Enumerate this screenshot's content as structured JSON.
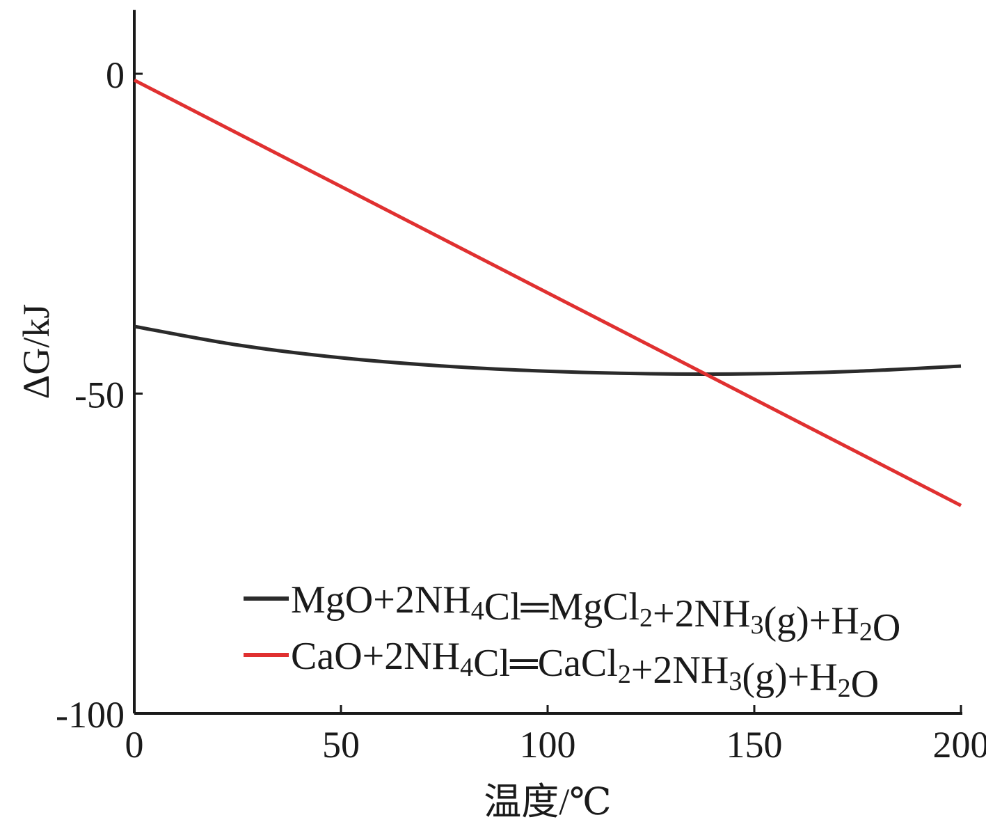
{
  "chart_data": {
    "type": "line",
    "xlabel": "温度/℃",
    "ylabel": "ΔG/kJ",
    "xlim": [
      0,
      200
    ],
    "ylim": [
      -100,
      10
    ],
    "xticks": [
      0,
      50,
      100,
      150,
      200
    ],
    "xtick_labels": [
      "0",
      "50",
      "100",
      "150",
      "200"
    ],
    "yticks": [
      0,
      -50,
      -100
    ],
    "ytick_labels": [
      "0",
      "-50",
      "-100"
    ],
    "grid": false,
    "legend_position": "bottom-right",
    "series": [
      {
        "name": "MgO+2NH4Cl═MgCl2+2NH3(g)+H2O",
        "color": "#2b2b2b",
        "x": [
          0,
          25,
          50,
          75,
          100,
          125,
          150,
          175,
          200
        ],
        "y": [
          -39.5,
          -42.4,
          -44.4,
          -45.7,
          -46.5,
          -46.9,
          -46.9,
          -46.5,
          -45.7
        ]
      },
      {
        "name": "CaO+2NH4Cl═CaCl2+2NH3(g)+H2O",
        "color": "#e03030",
        "x": [
          0,
          200
        ],
        "y": [
          -1.0,
          -67.5
        ]
      }
    ]
  }
}
